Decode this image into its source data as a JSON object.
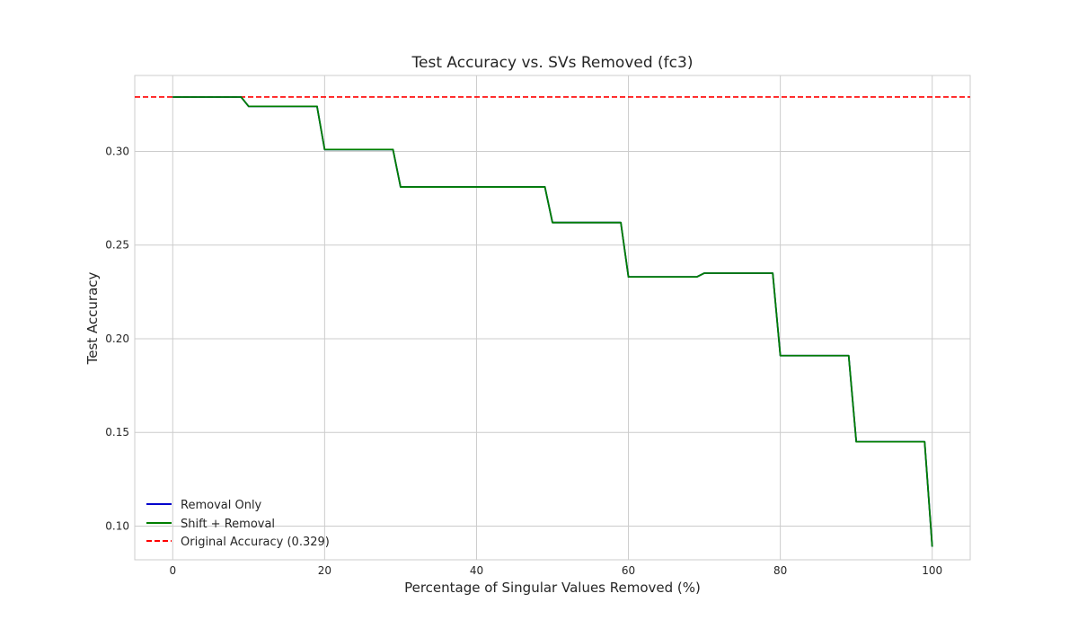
{
  "chart_data": {
    "type": "line",
    "title": "Test Accuracy vs. SVs Removed (fc3)",
    "xlabel": "Percentage of Singular Values Removed (%)",
    "ylabel": "Test Accuracy",
    "xlim": [
      -5,
      105
    ],
    "ylim": [
      0.082,
      0.3405
    ],
    "xticks": [
      0,
      20,
      40,
      60,
      80,
      100
    ],
    "xtick_labels": [
      "0",
      "20",
      "40",
      "60",
      "80",
      "100"
    ],
    "yticks": [
      0.1,
      0.15,
      0.2,
      0.25,
      0.3
    ],
    "ytick_labels": [
      "0.10",
      "0.15",
      "0.20",
      "0.25",
      "0.30"
    ],
    "grid": true,
    "legend_position": "lower-left",
    "x": [
      0,
      1,
      2,
      3,
      4,
      5,
      6,
      7,
      8,
      9,
      10,
      11,
      12,
      13,
      14,
      15,
      16,
      17,
      18,
      19,
      20,
      21,
      22,
      23,
      24,
      25,
      26,
      27,
      28,
      29,
      30,
      31,
      32,
      33,
      34,
      35,
      36,
      37,
      38,
      39,
      40,
      41,
      42,
      43,
      44,
      45,
      46,
      47,
      48,
      49,
      50,
      51,
      52,
      53,
      54,
      55,
      56,
      57,
      58,
      59,
      60,
      61,
      62,
      63,
      64,
      65,
      66,
      67,
      68,
      69,
      70,
      71,
      72,
      73,
      74,
      75,
      76,
      77,
      78,
      79,
      80,
      81,
      82,
      83,
      84,
      85,
      86,
      87,
      88,
      89,
      90,
      91,
      92,
      93,
      94,
      95,
      96,
      97,
      98,
      99,
      100
    ],
    "series": [
      {
        "name": "Removal Only",
        "color": "#0000cc",
        "style": "solid",
        "values": [
          0.329,
          0.329,
          0.329,
          0.329,
          0.329,
          0.329,
          0.329,
          0.329,
          0.329,
          0.329,
          0.324,
          0.324,
          0.324,
          0.324,
          0.324,
          0.324,
          0.324,
          0.324,
          0.324,
          0.324,
          0.301,
          0.301,
          0.301,
          0.301,
          0.301,
          0.301,
          0.301,
          0.301,
          0.301,
          0.301,
          0.281,
          0.281,
          0.281,
          0.281,
          0.281,
          0.281,
          0.281,
          0.281,
          0.281,
          0.281,
          0.281,
          0.281,
          0.281,
          0.281,
          0.281,
          0.281,
          0.281,
          0.281,
          0.281,
          0.281,
          0.262,
          0.262,
          0.262,
          0.262,
          0.262,
          0.262,
          0.262,
          0.262,
          0.262,
          0.262,
          0.233,
          0.233,
          0.233,
          0.233,
          0.233,
          0.233,
          0.233,
          0.233,
          0.233,
          0.233,
          0.235,
          0.235,
          0.235,
          0.235,
          0.235,
          0.235,
          0.235,
          0.235,
          0.235,
          0.235,
          0.191,
          0.191,
          0.191,
          0.191,
          0.191,
          0.191,
          0.191,
          0.191,
          0.191,
          0.191,
          0.145,
          0.145,
          0.145,
          0.145,
          0.145,
          0.145,
          0.145,
          0.145,
          0.145,
          0.145,
          0.089
        ]
      },
      {
        "name": "Shift + Removal",
        "color": "#007f00",
        "style": "solid",
        "values": [
          0.329,
          0.329,
          0.329,
          0.329,
          0.329,
          0.329,
          0.329,
          0.329,
          0.329,
          0.329,
          0.324,
          0.324,
          0.324,
          0.324,
          0.324,
          0.324,
          0.324,
          0.324,
          0.324,
          0.324,
          0.301,
          0.301,
          0.301,
          0.301,
          0.301,
          0.301,
          0.301,
          0.301,
          0.301,
          0.301,
          0.281,
          0.281,
          0.281,
          0.281,
          0.281,
          0.281,
          0.281,
          0.281,
          0.281,
          0.281,
          0.281,
          0.281,
          0.281,
          0.281,
          0.281,
          0.281,
          0.281,
          0.281,
          0.281,
          0.281,
          0.262,
          0.262,
          0.262,
          0.262,
          0.262,
          0.262,
          0.262,
          0.262,
          0.262,
          0.262,
          0.233,
          0.233,
          0.233,
          0.233,
          0.233,
          0.233,
          0.233,
          0.233,
          0.233,
          0.233,
          0.235,
          0.235,
          0.235,
          0.235,
          0.235,
          0.235,
          0.235,
          0.235,
          0.235,
          0.235,
          0.191,
          0.191,
          0.191,
          0.191,
          0.191,
          0.191,
          0.191,
          0.191,
          0.191,
          0.191,
          0.145,
          0.145,
          0.145,
          0.145,
          0.145,
          0.145,
          0.145,
          0.145,
          0.145,
          0.145,
          0.089
        ]
      }
    ],
    "reference_line": {
      "name": "Original Accuracy (0.329)",
      "value": 0.329,
      "color": "#ff0000",
      "style": "dashed"
    },
    "legend": [
      "Removal Only",
      "Shift + Removal",
      "Original Accuracy (0.329)"
    ]
  }
}
